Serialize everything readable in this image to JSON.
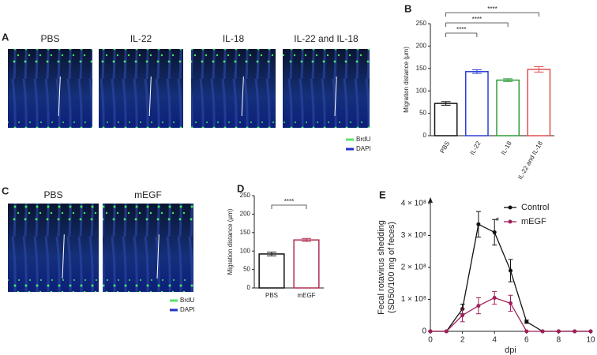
{
  "panel_labels": [
    "A",
    "B",
    "C",
    "D",
    "E"
  ],
  "image_panels": [
    {
      "titles": [
        {
          "text": "PBS",
          "color": "#222222"
        },
        {
          "text": "IL-22",
          "color": "#2d2dd6"
        },
        {
          "text": "IL-18",
          "color": "#1aa84a"
        },
        {
          "text": "IL-22 and IL-18",
          "color": "#e02020"
        }
      ],
      "legend": [
        "BrdU",
        "DAPI"
      ]
    },
    {
      "titles": [
        {
          "text": "PBS",
          "color": "#222222"
        },
        {
          "text": "mEGF",
          "color": "#e02020"
        }
      ],
      "legend": [
        "BrdU",
        "DAPI"
      ]
    }
  ],
  "chart_data": [
    {
      "type": "bar",
      "ylabel": "Migration distance (μm)",
      "categories": [
        "PBS",
        "IL-22",
        "IL-18",
        "IL-22 and IL-18"
      ],
      "values": [
        72,
        143,
        124,
        148
      ],
      "errors": [
        4,
        4,
        3,
        6
      ],
      "colors": [
        "#111111",
        "#2d3fd6",
        "#2e9e3a",
        "#e05050"
      ],
      "ylim": [
        0,
        250
      ],
      "yticks": [
        0,
        50,
        100,
        150,
        200,
        250
      ],
      "significance_labels": [
        "****",
        "****",
        "****"
      ]
    },
    {
      "type": "bar",
      "ylabel": "Migration distance (μm)",
      "categories": [
        "PBS",
        "mEGF"
      ],
      "values": [
        92,
        130
      ],
      "errors": [
        5,
        4
      ],
      "colors": [
        "#111111",
        "#b03050"
      ],
      "ylim": [
        0,
        250
      ],
      "yticks": [
        0,
        50,
        100,
        150,
        200,
        250
      ],
      "significance_labels": [
        "****"
      ]
    },
    {
      "type": "line",
      "xlabel": "dpi",
      "ylabel": [
        "Fecal rotavirus shedding",
        "(SD50/100 mg of feces)"
      ],
      "x": [
        0,
        1,
        2,
        3,
        4,
        5,
        6,
        7,
        8,
        9,
        10
      ],
      "series": [
        {
          "name": "Control",
          "color": "#111111",
          "values": [
            0,
            0,
            70000000,
            335000000,
            310000000,
            190000000,
            30000000,
            0,
            0,
            0,
            0
          ],
          "errors": [
            0,
            0,
            15000000,
            40000000,
            40000000,
            35000000,
            5000000,
            0,
            0,
            0,
            0
          ]
        },
        {
          "name": "mEGF",
          "color": "#a0205a",
          "values": [
            0,
            0,
            50000000,
            80000000,
            105000000,
            88000000,
            0,
            0,
            0,
            0,
            0
          ],
          "errors": [
            0,
            0,
            20000000,
            25000000,
            20000000,
            25000000,
            0,
            0,
            0,
            0,
            0
          ]
        }
      ],
      "annotation": "*",
      "xlim": [
        0,
        10
      ],
      "xticks": [
        0,
        2,
        4,
        6,
        8,
        10
      ],
      "ylim": [
        0,
        400000000
      ],
      "yticks": [
        0,
        {
          "value": 100000000,
          "label": "1 × 10⁸"
        },
        {
          "value": 200000000,
          "label": "2 × 10⁸"
        },
        {
          "value": 300000000,
          "label": "3 × 10⁸"
        },
        {
          "value": 400000000,
          "label": "4 × 10⁸"
        }
      ]
    }
  ]
}
